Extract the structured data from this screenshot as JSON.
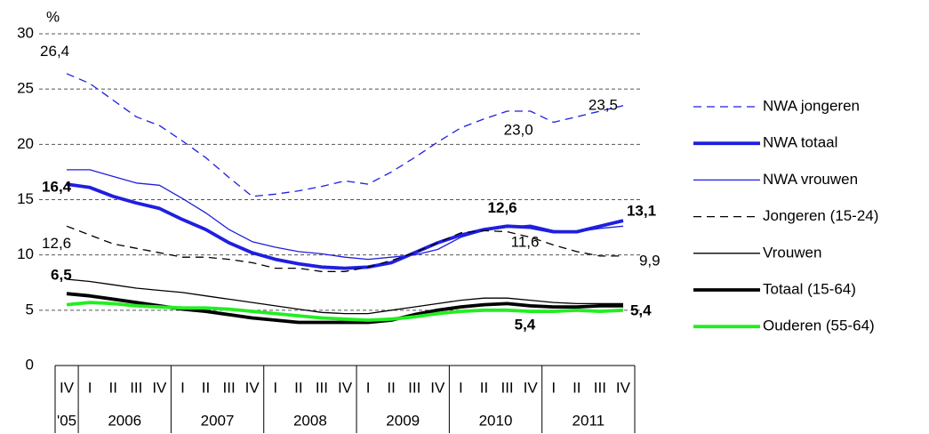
{
  "chart_data": {
    "type": "line",
    "unit_label": "%",
    "categories": [
      "IV",
      "I",
      "II",
      "III",
      "IV",
      "I",
      "II",
      "III",
      "IV",
      "I",
      "II",
      "III",
      "IV",
      "I",
      "II",
      "III",
      "IV",
      "I",
      "II",
      "III",
      "IV",
      "I",
      "II",
      "III",
      "IV"
    ],
    "years": [
      "'05",
      "2006",
      "2007",
      "2008",
      "2009",
      "2010",
      "2011"
    ],
    "ylim": [
      0,
      30
    ],
    "yticks": [
      0,
      5,
      10,
      15,
      20,
      25,
      30
    ],
    "grid": true,
    "legend": "right",
    "series": [
      {
        "name": "NWA jongeren",
        "color": "#1f1fe0",
        "style": "dashed",
        "weight": "thin",
        "values": [
          26.4,
          25.5,
          24.0,
          22.5,
          21.7,
          20.3,
          18.8,
          17.0,
          15.3,
          15.5,
          15.8,
          16.2,
          16.7,
          16.4,
          17.5,
          18.8,
          20.2,
          21.5,
          22.3,
          23.0,
          23.0,
          22.0,
          22.5,
          23.0,
          23.5
        ],
        "value_labels": [
          "26,4",
          null,
          null,
          null,
          null,
          null,
          null,
          null,
          null,
          null,
          null,
          null,
          null,
          null,
          null,
          null,
          null,
          null,
          null,
          null,
          "23,0",
          null,
          null,
          null,
          "23,5"
        ]
      },
      {
        "name": "NWA totaal",
        "color": "#1f1fe0",
        "style": "solid",
        "weight": "thick",
        "values": [
          16.4,
          16.1,
          15.3,
          14.7,
          14.2,
          13.2,
          12.3,
          11.1,
          10.2,
          9.6,
          9.2,
          8.9,
          8.8,
          8.9,
          9.3,
          10.2,
          11.1,
          11.8,
          12.3,
          12.6,
          12.5,
          12.1,
          12.1,
          12.6,
          13.1
        ],
        "value_labels": [
          "16,4",
          null,
          null,
          null,
          null,
          null,
          null,
          null,
          null,
          null,
          null,
          null,
          null,
          null,
          null,
          null,
          null,
          null,
          null,
          "12,6",
          null,
          null,
          null,
          null,
          "13,1"
        ]
      },
      {
        "name": "NWA vrouwen",
        "color": "#1f1fe0",
        "style": "solid",
        "weight": "thin",
        "values": [
          17.7,
          17.7,
          17.1,
          16.5,
          16.3,
          15.1,
          13.8,
          12.3,
          11.2,
          10.7,
          10.3,
          10.1,
          9.8,
          9.6,
          9.8,
          10.0,
          10.5,
          11.6,
          12.2,
          12.5,
          12.7,
          12.2,
          12.1,
          12.4,
          12.6
        ]
      },
      {
        "name": "Jongeren (15-24)",
        "color": "#000000",
        "style": "dashed",
        "weight": "thin",
        "values": [
          12.6,
          11.8,
          11.0,
          10.6,
          10.2,
          9.8,
          9.8,
          9.6,
          9.3,
          8.8,
          8.8,
          8.5,
          8.5,
          8.9,
          9.5,
          10.2,
          11.1,
          12.0,
          12.2,
          12.1,
          11.6,
          10.9,
          10.3,
          9.9,
          9.9
        ],
        "value_labels": [
          "12,6",
          null,
          null,
          null,
          null,
          null,
          null,
          null,
          null,
          null,
          null,
          null,
          null,
          null,
          null,
          null,
          null,
          null,
          null,
          null,
          "11,6",
          null,
          null,
          null,
          "9,9"
        ]
      },
      {
        "name": "Vrouwen",
        "color": "#000000",
        "style": "solid",
        "weight": "thin",
        "values": [
          7.8,
          7.6,
          7.3,
          7.0,
          6.8,
          6.6,
          6.3,
          6.0,
          5.7,
          5.4,
          5.1,
          4.8,
          4.7,
          4.7,
          5.0,
          5.3,
          5.6,
          5.9,
          6.1,
          6.1,
          5.9,
          5.7,
          5.6,
          5.6,
          5.6
        ]
      },
      {
        "name": "Totaal (15-64)",
        "color": "#000000",
        "style": "solid",
        "weight": "thick",
        "values": [
          6.5,
          6.3,
          6.0,
          5.7,
          5.4,
          5.1,
          4.9,
          4.6,
          4.3,
          4.1,
          3.9,
          3.9,
          3.9,
          3.9,
          4.1,
          4.6,
          5.0,
          5.3,
          5.5,
          5.6,
          5.4,
          5.3,
          5.3,
          5.4,
          5.4
        ],
        "value_labels": [
          "6,5",
          null,
          null,
          null,
          null,
          null,
          null,
          null,
          null,
          null,
          null,
          null,
          null,
          null,
          null,
          null,
          null,
          null,
          null,
          null,
          "5,4",
          null,
          null,
          null,
          "5,4"
        ]
      },
      {
        "name": "Ouderen (55-64)",
        "color": "#22ee22",
        "style": "solid",
        "weight": "thick",
        "values": [
          5.5,
          5.7,
          5.6,
          5.4,
          5.3,
          5.2,
          5.2,
          5.1,
          4.9,
          4.7,
          4.5,
          4.3,
          4.2,
          4.1,
          4.2,
          4.4,
          4.7,
          4.9,
          5.0,
          5.0,
          4.9,
          4.9,
          5.0,
          4.9,
          5.0
        ]
      }
    ]
  }
}
